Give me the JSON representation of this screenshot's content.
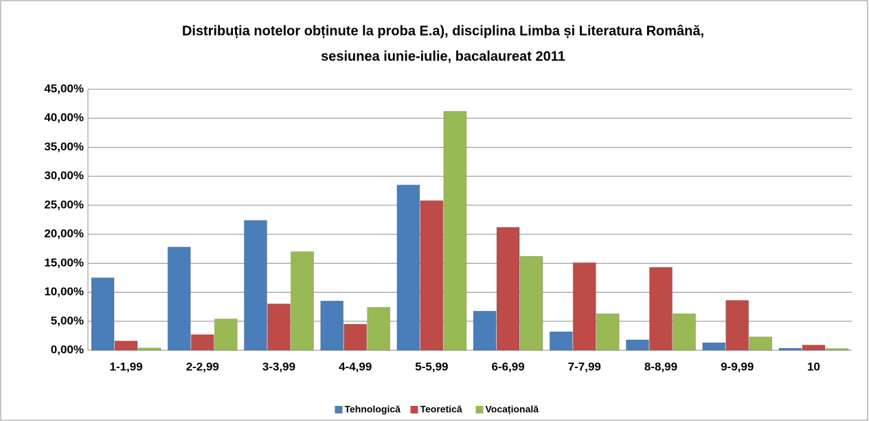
{
  "chart_data": {
    "type": "bar",
    "title": [
      "Distribuția notelor obținute la proba E.a), disciplina Limba și Literatura Română,",
      "sesiunea iunie-iulie, bacalaureat 2011"
    ],
    "categories": [
      "1-1,99",
      "2-2,99",
      "3-3,99",
      "4-4,99",
      "5-5,99",
      "6-6,99",
      "7-7,99",
      "8-8,99",
      "9-9,99",
      "10"
    ],
    "series": [
      {
        "name": "Tehnologică",
        "color": "#4a7ebb",
        "values": [
          12.5,
          17.8,
          22.4,
          8.5,
          28.5,
          6.75,
          3.2,
          1.8,
          1.3,
          0.35
        ]
      },
      {
        "name": "Teoretică",
        "color": "#be4b48",
        "values": [
          1.6,
          2.7,
          8.0,
          4.5,
          25.8,
          21.2,
          15.1,
          14.3,
          8.6,
          0.9
        ]
      },
      {
        "name": "Vocațională",
        "color": "#98b954",
        "values": [
          0.4,
          5.4,
          17.0,
          7.4,
          41.2,
          16.2,
          6.3,
          6.3,
          2.3,
          0.3
        ]
      }
    ],
    "ylim": [
      0,
      45
    ],
    "yticks": [
      {
        "value": 0,
        "label": "0,00%"
      },
      {
        "value": 5,
        "label": "5,00%"
      },
      {
        "value": 10,
        "label": "10,00%"
      },
      {
        "value": 15,
        "label": "15,00%"
      },
      {
        "value": 20,
        "label": "20,00%"
      },
      {
        "value": 25,
        "label": "25,00%"
      },
      {
        "value": 30,
        "label": "30,00%"
      },
      {
        "value": 35,
        "label": "35,00%"
      },
      {
        "value": 40,
        "label": "40,00%"
      },
      {
        "value": 45,
        "label": "45,00%"
      }
    ],
    "grid": true,
    "legend": "bottom"
  }
}
